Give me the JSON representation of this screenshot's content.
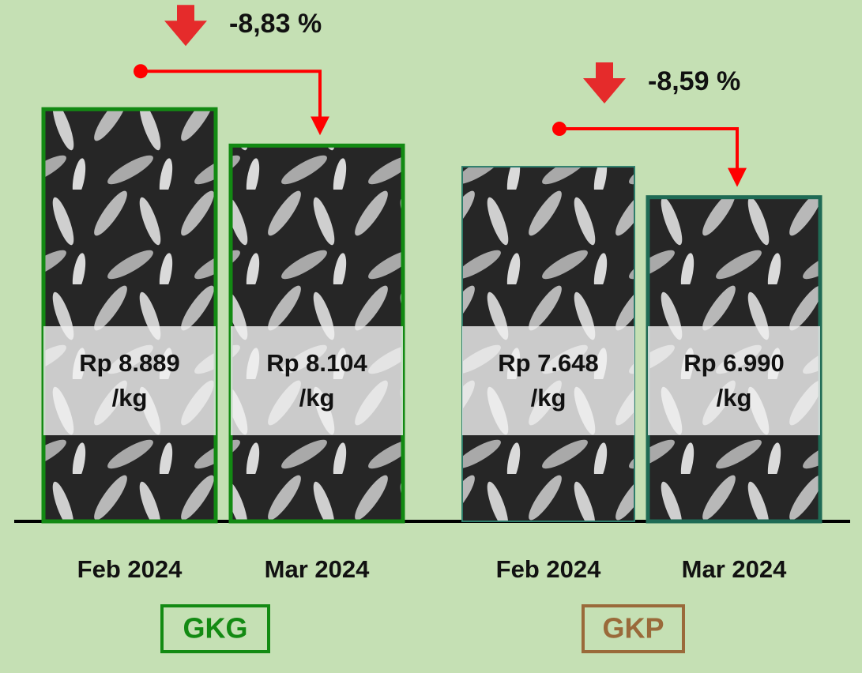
{
  "chart_data": {
    "type": "bar",
    "ylim": [
      0,
      10000
    ],
    "groups": [
      {
        "name": "GKG",
        "color": "#138a13",
        "label_color": "#138a13",
        "categories": [
          "Feb 2024",
          "Mar 2024"
        ],
        "values": [
          8889,
          8104
        ],
        "value_labels": [
          "Rp 8.889\n/kg",
          "Rp 8.104\n/kg"
        ],
        "bar_borders": [
          "#138a13",
          "#138a13"
        ],
        "change": {
          "value": -8.83,
          "label": "-8,83 %"
        }
      },
      {
        "name": "GKP",
        "color": "#2e7d6b",
        "label_color": "#9a6a3a",
        "categories": [
          "Feb 2024",
          "Mar 2024"
        ],
        "values": [
          7648,
          6990
        ],
        "value_labels": [
          "Rp 7.648\n/kg",
          "Rp 6.990\n/kg"
        ],
        "bar_borders": [
          "#2e7d6b",
          "#1f6b55"
        ],
        "change": {
          "value": -8.59,
          "label": "-8,59 %"
        }
      }
    ]
  }
}
